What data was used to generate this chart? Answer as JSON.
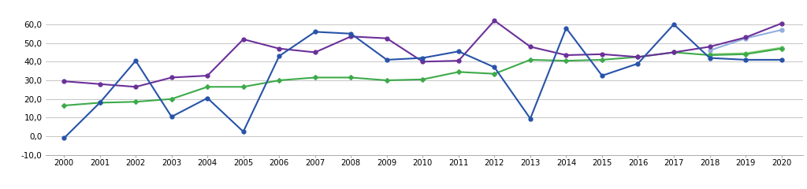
{
  "years": [
    2000,
    2001,
    2002,
    2003,
    2004,
    2005,
    2006,
    2007,
    2008,
    2009,
    2010,
    2011,
    2012,
    2013,
    2014,
    2015,
    2016,
    2017,
    2018,
    2019,
    2020
  ],
  "blue_line": [
    -1.0,
    18.0,
    40.5,
    10.5,
    20.5,
    2.5,
    43.0,
    56.0,
    55.0,
    41.0,
    42.0,
    45.5,
    37.0,
    9.5,
    58.0,
    32.5,
    39.0,
    60.0,
    42.0,
    41.0,
    41.0
  ],
  "purple_line": [
    29.5,
    28.0,
    26.5,
    31.5,
    32.5,
    52.0,
    47.0,
    45.0,
    53.5,
    52.5,
    40.0,
    40.5,
    62.0,
    48.0,
    43.5,
    44.0,
    42.5,
    45.0,
    48.0,
    53.0,
    60.5
  ],
  "green_line": [
    16.5,
    18.0,
    18.5,
    20.0,
    26.5,
    26.5,
    30.0,
    31.5,
    31.5,
    30.0,
    30.5,
    34.5,
    33.5,
    41.0,
    40.5,
    41.0,
    42.5,
    45.0,
    43.5,
    44.0,
    47.0
  ],
  "light_blue_line": [
    null,
    null,
    null,
    null,
    null,
    null,
    null,
    null,
    null,
    null,
    null,
    null,
    null,
    null,
    null,
    null,
    null,
    null,
    46.0,
    52.5,
    57.0
  ],
  "light_green_line": [
    null,
    null,
    null,
    null,
    null,
    null,
    null,
    null,
    null,
    null,
    null,
    null,
    null,
    null,
    null,
    null,
    null,
    null,
    44.0,
    44.5,
    47.5
  ],
  "blue_color": "#2753A8",
  "purple_color": "#6B3099",
  "green_color": "#3DAA4A",
  "light_blue_color": "#92AEDD",
  "light_green_color": "#90D080",
  "ylim": [
    -10,
    70
  ],
  "yticks": [
    -10,
    0,
    10,
    20,
    30,
    40,
    50,
    60
  ],
  "background_color": "#FFFFFF",
  "grid_color": "#BBBBBB"
}
